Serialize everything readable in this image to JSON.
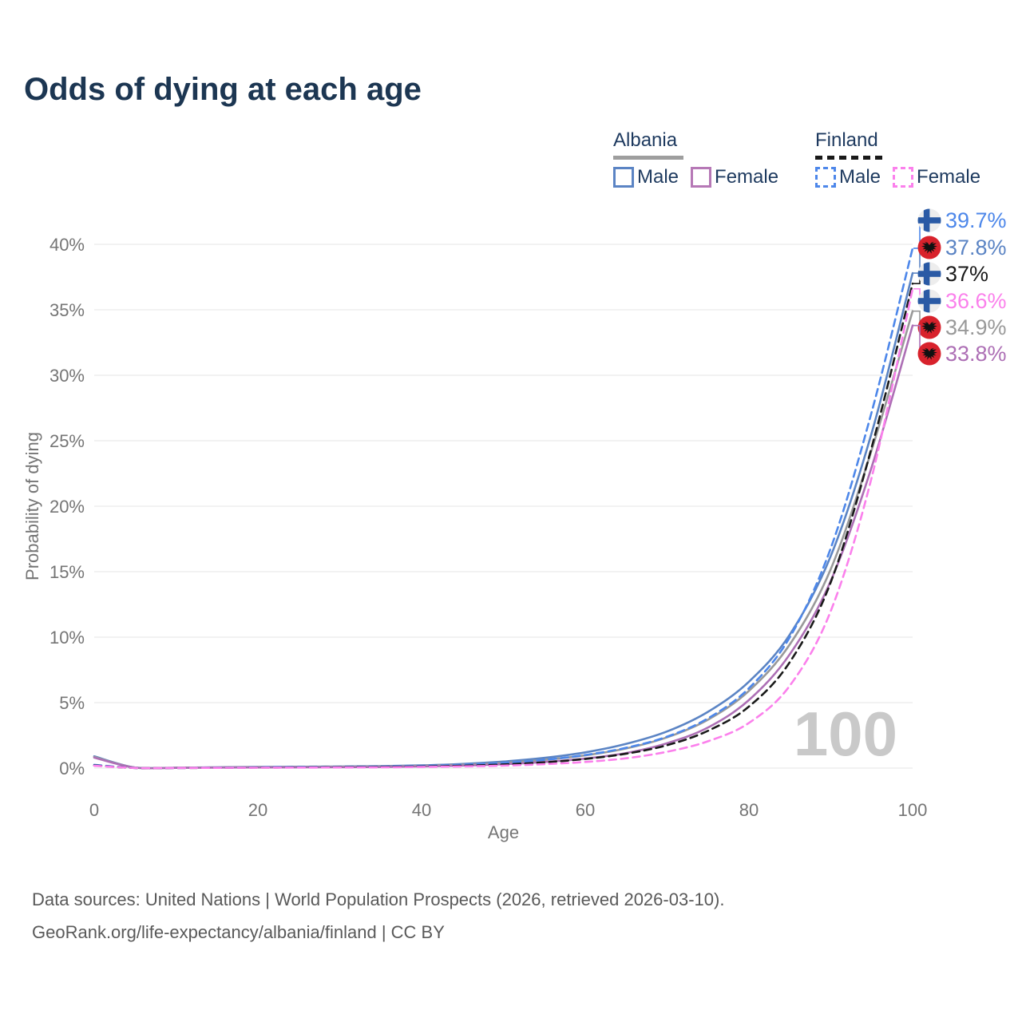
{
  "title": "Odds of dying at each age",
  "legend": {
    "groups": [
      {
        "label": "Albania",
        "line_style": "solid",
        "underline_color": "#9e9e9e",
        "items": [
          {
            "label": "Male",
            "color": "#5b84c4",
            "dash": false
          },
          {
            "label": "Female",
            "color": "#b678b6",
            "dash": false
          }
        ]
      },
      {
        "label": "Finland",
        "line_style": "dashed",
        "underline_color": "#191919",
        "items": [
          {
            "label": "Male",
            "color": "#4d87ea",
            "dash": true
          },
          {
            "label": "Female",
            "color": "#fb80ec",
            "dash": true
          }
        ]
      }
    ]
  },
  "chart_data": {
    "type": "line",
    "title": "Odds of dying at each age",
    "xlabel": "Age",
    "ylabel": "Probability of dying",
    "x_ticks": [
      0,
      20,
      40,
      60,
      80,
      100
    ],
    "y_ticks": [
      0,
      5,
      10,
      15,
      20,
      25,
      30,
      35,
      40
    ],
    "y_tick_suffix": "%",
    "xlim": [
      0,
      100
    ],
    "ylim": [
      0,
      40
    ],
    "grid": "horizontal",
    "hover_age_indicator": "100",
    "ages": [
      0,
      5,
      10,
      15,
      20,
      25,
      30,
      35,
      40,
      45,
      50,
      55,
      60,
      65,
      70,
      75,
      80,
      85,
      90,
      95,
      100
    ],
    "series": [
      {
        "name": "Albania Male",
        "country": "albania",
        "sex": "male",
        "color": "#5b84c4",
        "dash": false,
        "end_label": "37.8%",
        "end_value": 37.8,
        "values": [
          0.9,
          0.04,
          0.03,
          0.06,
          0.09,
          0.1,
          0.12,
          0.15,
          0.21,
          0.32,
          0.5,
          0.78,
          1.2,
          1.85,
          2.8,
          4.3,
          6.6,
          10.2,
          16.2,
          25.6,
          37.8
        ]
      },
      {
        "name": "Albania Both sexes",
        "country": "albania",
        "sex": "both",
        "color": "#999999",
        "dash": false,
        "end_label": "34.9%",
        "end_value": 34.9,
        "values": [
          0.85,
          0.035,
          0.025,
          0.05,
          0.07,
          0.08,
          0.1,
          0.12,
          0.17,
          0.26,
          0.4,
          0.63,
          0.97,
          1.5,
          2.35,
          3.7,
          5.9,
          9.45,
          15.2,
          24.3,
          34.9
        ]
      },
      {
        "name": "Albania Female",
        "country": "albania",
        "sex": "female",
        "color": "#ad6fb5",
        "dash": false,
        "end_label": "33.8%",
        "end_value": 33.8,
        "values": [
          0.8,
          0.03,
          0.02,
          0.04,
          0.05,
          0.06,
          0.07,
          0.09,
          0.13,
          0.19,
          0.3,
          0.47,
          0.73,
          1.15,
          1.9,
          3.1,
          5.2,
          8.7,
          14.3,
          23.0,
          33.8
        ]
      },
      {
        "name": "Finland Male",
        "country": "finland",
        "sex": "male",
        "color": "#4d87ea",
        "dash": true,
        "end_label": "39.7%",
        "end_value": 39.7,
        "values": [
          0.25,
          0.01,
          0.01,
          0.03,
          0.06,
          0.07,
          0.09,
          0.12,
          0.17,
          0.26,
          0.4,
          0.63,
          1.0,
          1.55,
          2.4,
          3.8,
          6.1,
          10.0,
          16.8,
          27.2,
          39.7
        ]
      },
      {
        "name": "Finland Both sexes",
        "country": "finland",
        "sex": "both",
        "color": "#1a1a1a",
        "dash": true,
        "end_label": "37%",
        "end_value": 37.0,
        "values": [
          0.2,
          0.01,
          0.01,
          0.02,
          0.04,
          0.05,
          0.07,
          0.09,
          0.12,
          0.18,
          0.28,
          0.44,
          0.7,
          1.1,
          1.75,
          2.85,
          4.7,
          8.1,
          14.2,
          24.5,
          37.0
        ]
      },
      {
        "name": "Finland Female",
        "country": "finland",
        "sex": "female",
        "color": "#fb80ec",
        "dash": true,
        "end_label": "36.6%",
        "end_value": 36.6,
        "values": [
          0.18,
          0.01,
          0.01,
          0.02,
          0.03,
          0.04,
          0.05,
          0.06,
          0.09,
          0.13,
          0.19,
          0.3,
          0.47,
          0.75,
          1.25,
          2.05,
          3.45,
          6.3,
          12.0,
          22.2,
          36.6
        ]
      }
    ],
    "flag_colors": {
      "finland_bg": "#ededed",
      "finland_cross": "#2a5aa5",
      "albania_bg": "#d8222c",
      "albania_eagle": "#111111"
    },
    "watermark_color": "#c9c9c9",
    "axis_text_color": "#757575",
    "grid_color": "#ededed"
  },
  "footer": {
    "line1": "Data sources: United Nations | World Population Prospects (2026, retrieved 2026-03-10).",
    "line2": "GeoRank.org/life-expectancy/albania/finland | CC BY"
  }
}
